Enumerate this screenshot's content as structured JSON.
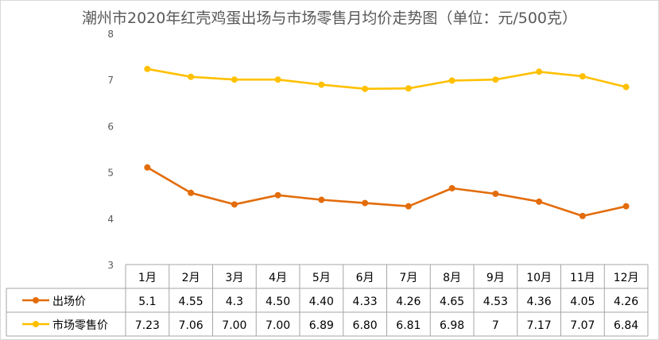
{
  "chart_data": {
    "type": "line",
    "title": "潮州市2020年红壳鸡蛋出场与市场零售月均价走势图（单位：元/500克）",
    "categories": [
      "1月",
      "2月",
      "3月",
      "4月",
      "5月",
      "6月",
      "7月",
      "8月",
      "9月",
      "10月",
      "11月",
      "12月"
    ],
    "ylim": [
      3,
      8
    ],
    "yticks": [
      "3",
      "4",
      "5",
      "6",
      "7",
      "8"
    ],
    "grid": false,
    "legend": "data-table-left",
    "series": [
      {
        "name": "出场价",
        "color": "#E36C0A",
        "values": [
          5.1,
          4.55,
          4.3,
          4.5,
          4.4,
          4.33,
          4.26,
          4.65,
          4.53,
          4.36,
          4.05,
          4.26
        ],
        "labels": [
          "5.1",
          "4.55",
          "4.3",
          "4.50",
          "4.40",
          "4.33",
          "4.26",
          "4.65",
          "4.53",
          "4.36",
          "4.05",
          "4.26"
        ]
      },
      {
        "name": "市场零售价",
        "color": "#FFC000",
        "values": [
          7.23,
          7.06,
          7.0,
          7.0,
          6.89,
          6.8,
          6.81,
          6.98,
          7,
          7.17,
          7.07,
          6.84
        ],
        "labels": [
          "7.23",
          "7.06",
          "7.00",
          "7.00",
          "6.89",
          "6.80",
          "6.81",
          "6.98",
          "7",
          "7.17",
          "7.07",
          "6.84"
        ]
      }
    ]
  }
}
